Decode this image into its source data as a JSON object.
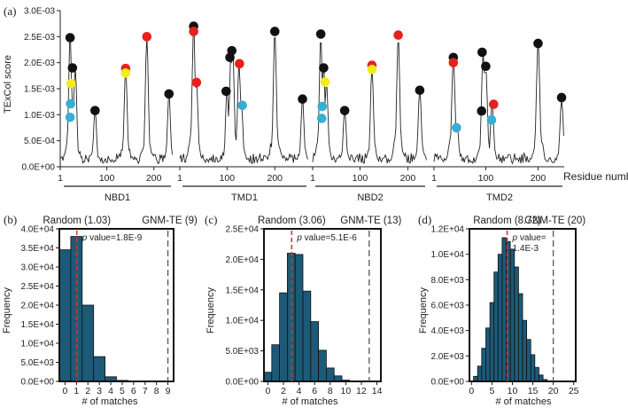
{
  "colors": {
    "black_marker": "#111111",
    "red_marker": "#e8201c",
    "yellow_marker": "#f4ec1a",
    "cyan_marker": "#37aed3",
    "bar_fill": "#1c5a78",
    "random_line": "#e0332b",
    "gnm_line": "#555555"
  },
  "chart_data": [
    {
      "panel": "(a)",
      "type": "line",
      "ylabel": "TExCol score",
      "xlabel": "Residue number",
      "yticks": [
        "0.0E+00",
        "5.0E-04",
        "1.0E-03",
        "1.5E-03",
        "2.0E-03",
        "2.5E-03",
        "3.0E-03"
      ],
      "ylim": [
        0,
        0.003
      ],
      "domains": [
        {
          "name": "NBD1",
          "start": 1,
          "end": 240,
          "ticks": [
            {
              "v": 1,
              "t": "1"
            },
            {
              "v": 100,
              "t": "100"
            },
            {
              "v": 200,
              "t": "200"
            }
          ]
        },
        {
          "name": "TMD1",
          "start": 1,
          "end": 270,
          "ticks": [
            {
              "v": 1,
              "t": "1"
            },
            {
              "v": 100,
              "t": "100"
            },
            {
              "v": 200,
              "t": "200"
            }
          ]
        },
        {
          "name": "NBD2",
          "start": 1,
          "end": 240,
          "ticks": [
            {
              "v": 1,
              "t": "1"
            },
            {
              "v": 100,
              "t": "100"
            },
            {
              "v": 200,
              "t": "200"
            }
          ]
        },
        {
          "name": "TMD2",
          "start": 1,
          "end": 250,
          "ticks": [
            {
              "v": 1,
              "t": "1"
            },
            {
              "v": 100,
              "t": "100"
            },
            {
              "v": 200,
              "t": "200"
            }
          ]
        }
      ],
      "peaks": [
        {
          "d": 0,
          "x": 22,
          "y": 0.0025
        },
        {
          "d": 0,
          "x": 33,
          "y": 0.0019
        },
        {
          "d": 0,
          "x": 28,
          "y": 0.0012
        },
        {
          "d": 0,
          "x": 75,
          "y": 0.0011
        },
        {
          "d": 0,
          "x": 140,
          "y": 0.0019
        },
        {
          "d": 0,
          "x": 185,
          "y": 0.0025
        },
        {
          "d": 0,
          "x": 232,
          "y": 0.0014
        },
        {
          "d": 1,
          "x": 30,
          "y": 0.0027
        },
        {
          "d": 1,
          "x": 36,
          "y": 0.0016
        },
        {
          "d": 1,
          "x": 100,
          "y": 0.0015
        },
        {
          "d": 1,
          "x": 108,
          "y": 0.0021
        },
        {
          "d": 1,
          "x": 112,
          "y": 0.0022
        },
        {
          "d": 1,
          "x": 125,
          "y": 0.002
        },
        {
          "d": 1,
          "x": 130,
          "y": 0.0012
        },
        {
          "d": 1,
          "x": 200,
          "y": 0.0026
        },
        {
          "d": 1,
          "x": 258,
          "y": 0.0013
        },
        {
          "d": 2,
          "x": 18,
          "y": 0.0025
        },
        {
          "d": 2,
          "x": 24,
          "y": 0.0019
        },
        {
          "d": 2,
          "x": 30,
          "y": 0.0016
        },
        {
          "d": 2,
          "x": 22,
          "y": 0.0012
        },
        {
          "d": 2,
          "x": 68,
          "y": 0.0011
        },
        {
          "d": 2,
          "x": 125,
          "y": 0.0019
        },
        {
          "d": 2,
          "x": 180,
          "y": 0.0025
        },
        {
          "d": 2,
          "x": 225,
          "y": 0.0015
        },
        {
          "d": 3,
          "x": 38,
          "y": 0.0021
        },
        {
          "d": 3,
          "x": 45,
          "y": 0.0008
        },
        {
          "d": 3,
          "x": 95,
          "y": 0.0022
        },
        {
          "d": 3,
          "x": 100,
          "y": 0.0019
        },
        {
          "d": 3,
          "x": 112,
          "y": 0.0012
        },
        {
          "d": 3,
          "x": 200,
          "y": 0.0024
        },
        {
          "d": 3,
          "x": 245,
          "y": 0.0013
        }
      ],
      "markers": [
        {
          "d": 0,
          "x": 22,
          "y": 0.00248,
          "c": "black"
        },
        {
          "d": 0,
          "x": 27,
          "y": 0.0019,
          "c": "black"
        },
        {
          "d": 0,
          "x": 24,
          "y": 0.0016,
          "c": "yellow"
        },
        {
          "d": 0,
          "x": 23,
          "y": 0.00121,
          "c": "cyan"
        },
        {
          "d": 0,
          "x": 22,
          "y": 0.00095,
          "c": "cyan"
        },
        {
          "d": 0,
          "x": 75,
          "y": 0.00108,
          "c": "black"
        },
        {
          "d": 0,
          "x": 140,
          "y": 0.00189,
          "c": "red"
        },
        {
          "d": 0,
          "x": 140,
          "y": 0.0018,
          "c": "yellow"
        },
        {
          "d": 0,
          "x": 185,
          "y": 0.0025,
          "c": "red"
        },
        {
          "d": 0,
          "x": 232,
          "y": 0.0014,
          "c": "black"
        },
        {
          "d": 1,
          "x": 30,
          "y": 0.0027,
          "c": "black"
        },
        {
          "d": 1,
          "x": 30,
          "y": 0.0026,
          "c": "red"
        },
        {
          "d": 1,
          "x": 36,
          "y": 0.00162,
          "c": "red"
        },
        {
          "d": 1,
          "x": 98,
          "y": 0.00145,
          "c": "black"
        },
        {
          "d": 1,
          "x": 106,
          "y": 0.0021,
          "c": "black"
        },
        {
          "d": 1,
          "x": 110,
          "y": 0.00223,
          "c": "black"
        },
        {
          "d": 1,
          "x": 126,
          "y": 0.00198,
          "c": "red"
        },
        {
          "d": 1,
          "x": 132,
          "y": 0.00118,
          "c": "cyan"
        },
        {
          "d": 1,
          "x": 200,
          "y": 0.0026,
          "c": "black"
        },
        {
          "d": 1,
          "x": 258,
          "y": 0.0013,
          "c": "black"
        },
        {
          "d": 2,
          "x": 18,
          "y": 0.00255,
          "c": "black"
        },
        {
          "d": 2,
          "x": 24,
          "y": 0.0019,
          "c": "black"
        },
        {
          "d": 2,
          "x": 27,
          "y": 0.00163,
          "c": "yellow"
        },
        {
          "d": 2,
          "x": 21,
          "y": 0.00116,
          "c": "cyan"
        },
        {
          "d": 2,
          "x": 20,
          "y": 0.00093,
          "c": "cyan"
        },
        {
          "d": 2,
          "x": 68,
          "y": 0.00108,
          "c": "black"
        },
        {
          "d": 2,
          "x": 125,
          "y": 0.00195,
          "c": "red"
        },
        {
          "d": 2,
          "x": 125,
          "y": 0.00187,
          "c": "yellow"
        },
        {
          "d": 2,
          "x": 180,
          "y": 0.00253,
          "c": "red"
        },
        {
          "d": 2,
          "x": 225,
          "y": 0.00147,
          "c": "black"
        },
        {
          "d": 3,
          "x": 38,
          "y": 0.0021,
          "c": "black"
        },
        {
          "d": 3,
          "x": 38,
          "y": 0.002,
          "c": "red"
        },
        {
          "d": 3,
          "x": 44,
          "y": 0.00075,
          "c": "cyan"
        },
        {
          "d": 3,
          "x": 93,
          "y": 0.0022,
          "c": "black"
        },
        {
          "d": 3,
          "x": 100,
          "y": 0.00193,
          "c": "black"
        },
        {
          "d": 3,
          "x": 92,
          "y": 0.00107,
          "c": "black"
        },
        {
          "d": 3,
          "x": 115,
          "y": 0.0012,
          "c": "red"
        },
        {
          "d": 3,
          "x": 111,
          "y": 0.0009,
          "c": "cyan"
        },
        {
          "d": 3,
          "x": 200,
          "y": 0.00237,
          "c": "black"
        },
        {
          "d": 3,
          "x": 245,
          "y": 0.00133,
          "c": "black"
        }
      ]
    },
    {
      "panel": "(b)",
      "type": "bar",
      "ylabel": "Frequency",
      "xlabel": "# of matches",
      "categories": [
        "0",
        "1",
        "2",
        "3",
        "4",
        "5",
        "6",
        "7",
        "8",
        "9"
      ],
      "values": [
        34500,
        38000,
        20000,
        6500,
        1200,
        250,
        50,
        10,
        2,
        0
      ],
      "yticks": [
        "0.0E+00",
        "5.0E+03",
        "1.0E+04",
        "1.5E+04",
        "2.0E+04",
        "2.5E+04",
        "3.0E+04",
        "3.5E+04",
        "4.0E+04"
      ],
      "ylim": [
        0,
        40000
      ],
      "xticks": [
        "0",
        "1",
        "2",
        "3",
        "4",
        "5",
        "6",
        "7",
        "8",
        "9"
      ],
      "xmax": 9,
      "random": {
        "label": "Random (1.03)",
        "value": 1.03
      },
      "gnm": {
        "label": "GNM-TE (9)",
        "value": 9
      },
      "pvalue": [
        "p value=1.8E-9"
      ]
    },
    {
      "panel": "(c)",
      "type": "bar",
      "ylabel": "Frequency",
      "xlabel": "# of matches",
      "categories": [
        "0",
        "1",
        "2",
        "3",
        "4",
        "5",
        "6",
        "7",
        "8",
        "9",
        "10",
        "11",
        "12",
        "13",
        "14"
      ],
      "values": [
        1500,
        6000,
        14500,
        21000,
        20800,
        14800,
        9800,
        5100,
        2200,
        900,
        200,
        50,
        10,
        0,
        0
      ],
      "yticks": [
        "0.0E+00",
        "5.0E+03",
        "1.0E+04",
        "1.5E+04",
        "2.0E+04",
        "2.5E+04"
      ],
      "ylim": [
        0,
        25000
      ],
      "xticks": [
        "0",
        "2",
        "4",
        "6",
        "8",
        "10",
        "12",
        "14"
      ],
      "xmax": 14,
      "random": {
        "label": "Random (3.06)",
        "value": 3.06
      },
      "gnm": {
        "label": "GNM-TE (13)",
        "value": 13
      },
      "pvalue": [
        "p value=5.1E-6"
      ]
    },
    {
      "panel": "(d)",
      "type": "bar",
      "ylabel": "Frequency",
      "xlabel": "# of matches",
      "categories": [
        "0",
        "1",
        "2",
        "3",
        "4",
        "5",
        "6",
        "7",
        "8",
        "9",
        "10",
        "11",
        "12",
        "13",
        "14",
        "15",
        "16",
        "17",
        "18",
        "19",
        "20",
        "21",
        "22",
        "23",
        "24",
        "25"
      ],
      "values": [
        50,
        400,
        1200,
        2600,
        4200,
        6200,
        8600,
        10000,
        11300,
        11000,
        10400,
        9000,
        6900,
        4800,
        3300,
        2100,
        1100,
        500,
        150,
        50,
        0,
        0,
        0,
        0,
        0,
        0
      ],
      "yticks": [
        "0.0E+00",
        "2.0E+03",
        "4.0E+03",
        "6.0E+03",
        "8.0E+03",
        "1.0E+04",
        "1.2E+04"
      ],
      "ylim": [
        0,
        12000
      ],
      "xticks": [
        "0",
        "5",
        "10",
        "15",
        "20",
        "25"
      ],
      "xmax": 25,
      "random": {
        "label": "Random (8.72)",
        "value": 8.72
      },
      "gnm": {
        "label": "GNM-TE (20)",
        "value": 20
      },
      "pvalue": [
        "p value=",
        "1.4E-3"
      ]
    }
  ]
}
